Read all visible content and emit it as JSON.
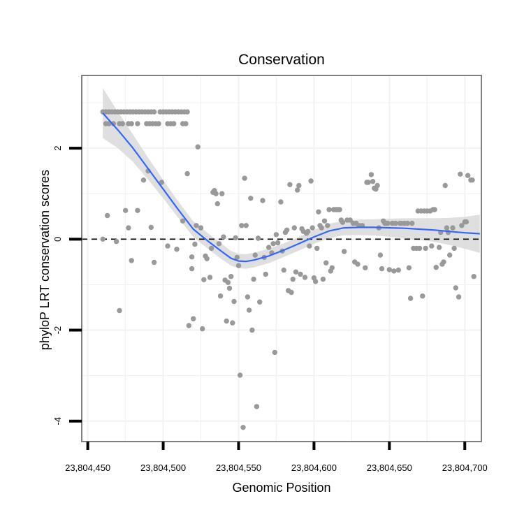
{
  "chart_data": {
    "type": "scatter",
    "title": "Conservation",
    "xlabel": "Genomic Position",
    "ylabel": "phyloP LRT conservation scores",
    "xlim": [
      23804446,
      23804711
    ],
    "ylim": [
      -4.45,
      3.6
    ],
    "x_ticks": [
      23804450,
      23804500,
      23804550,
      23804600,
      23804650,
      23804700
    ],
    "x_tick_labels": [
      "23,804,450",
      "23,804,500",
      "23,804,550",
      "23,804,600",
      "23,804,650",
      "23,804,700"
    ],
    "y_ticks": [
      -4,
      -2,
      0,
      2
    ],
    "y_tick_labels": [
      "-4",
      "-2",
      "0",
      "2"
    ],
    "reference_line": {
      "y": 0,
      "style": "dashed"
    },
    "colors": {
      "points": "#999999",
      "smooth": "#3366FF",
      "ribbon": "#D9D9D9",
      "panel_border": "#7F7F7F",
      "grid": "#F2F2F2"
    },
    "points": [
      [
        23804460,
        2.8
      ],
      [
        23804462,
        2.8
      ],
      [
        23804464,
        2.8
      ],
      [
        23804466,
        2.8
      ],
      [
        23804468,
        2.8
      ],
      [
        23804470,
        2.8
      ],
      [
        23804472,
        2.8
      ],
      [
        23804474,
        2.8
      ],
      [
        23804476,
        2.8
      ],
      [
        23804478,
        2.8
      ],
      [
        23804480,
        2.8
      ],
      [
        23804482,
        2.8
      ],
      [
        23804484,
        2.8
      ],
      [
        23804486,
        2.8
      ],
      [
        23804488,
        2.8
      ],
      [
        23804490,
        2.8
      ],
      [
        23804492,
        2.8
      ],
      [
        23804494,
        2.8
      ],
      [
        23804498,
        2.8
      ],
      [
        23804500,
        2.8
      ],
      [
        23804502,
        2.8
      ],
      [
        23804504,
        2.8
      ],
      [
        23804506,
        2.8
      ],
      [
        23804508,
        2.8
      ],
      [
        23804510,
        2.8
      ],
      [
        23804512,
        2.8
      ],
      [
        23804514,
        2.8
      ],
      [
        23804516,
        2.8
      ],
      [
        23804462,
        2.54
      ],
      [
        23804464,
        2.54
      ],
      [
        23804467,
        2.54
      ],
      [
        23804471,
        2.54
      ],
      [
        23804473,
        2.54
      ],
      [
        23804477,
        2.54
      ],
      [
        23804479,
        2.54
      ],
      [
        23804483,
        2.54
      ],
      [
        23804489,
        2.54
      ],
      [
        23804491,
        2.54
      ],
      [
        23804493,
        2.54
      ],
      [
        23804495,
        2.54
      ],
      [
        23804497,
        2.54
      ],
      [
        23804503,
        2.54
      ],
      [
        23804505,
        2.54
      ],
      [
        23804507,
        2.54
      ],
      [
        23804513,
        2.54
      ],
      [
        23804515,
        2.54
      ],
      [
        23804460,
        0.0
      ],
      [
        23804463,
        0.52
      ],
      [
        23804469,
        -0.05
      ],
      [
        23804471,
        -1.57
      ],
      [
        23804475,
        0.63
      ],
      [
        23804477,
        0.25
      ],
      [
        23804479,
        -0.47
      ],
      [
        23804483,
        0.63
      ],
      [
        23804487,
        1.3
      ],
      [
        23804490,
        1.5
      ],
      [
        23804492,
        0.26
      ],
      [
        23804494,
        -0.51
      ],
      [
        23804499,
        1.25
      ],
      [
        23804503,
        -0.15
      ],
      [
        23804509,
        -0.22
      ],
      [
        23804513,
        0.4
      ],
      [
        23804516,
        1.44
      ],
      [
        23804517,
        -1.9
      ],
      [
        23804519,
        -0.39
      ],
      [
        23804519,
        -0.65
      ],
      [
        23804520,
        -1.75
      ],
      [
        23804521,
        -0.11
      ],
      [
        23804522,
        0.3
      ],
      [
        23804523,
        2.03
      ],
      [
        23804525,
        0.25
      ],
      [
        23804526,
        -1.97
      ],
      [
        23804527,
        -0.89
      ],
      [
        23804528,
        -0.37
      ],
      [
        23804529,
        -0.43
      ],
      [
        23804531,
        -0.84
      ],
      [
        23804532,
        -0.2
      ],
      [
        23804533,
        1.03
      ],
      [
        23804534,
        1.07
      ],
      [
        23804535,
        1.0
      ],
      [
        23804536,
        0.78
      ],
      [
        23804537,
        -0.1
      ],
      [
        23804538,
        -1.25
      ],
      [
        23804539,
        1.0
      ],
      [
        23804540,
        0.05
      ],
      [
        23804541,
        -0.9
      ],
      [
        23804542,
        -1.8
      ],
      [
        23804543,
        -0.95
      ],
      [
        23804544,
        -1.08
      ],
      [
        23804545,
        -0.82
      ],
      [
        23804546,
        -1.84
      ],
      [
        23804547,
        -1.37
      ],
      [
        23804548,
        0.03
      ],
      [
        23804549,
        -0.4
      ],
      [
        23804550,
        -0.58
      ],
      [
        23804551,
        -2.99
      ],
      [
        23804552,
        0.3
      ],
      [
        23804553,
        -4.14
      ],
      [
        23804554,
        1.34
      ],
      [
        23804555,
        0.3
      ],
      [
        23804556,
        -1.27
      ],
      [
        23804557,
        -1.56
      ],
      [
        23804558,
        0.9
      ],
      [
        23804559,
        -2.0
      ],
      [
        23804560,
        -0.88
      ],
      [
        23804561,
        -0.35
      ],
      [
        23804562,
        -3.68
      ],
      [
        23804563,
        0.02
      ],
      [
        23804564,
        -1.38
      ],
      [
        23804566,
        0.85
      ],
      [
        23804567,
        -0.4
      ],
      [
        23804568,
        -0.77
      ],
      [
        23804570,
        -0.18
      ],
      [
        23804572,
        -0.3
      ],
      [
        23804573,
        -0.1
      ],
      [
        23804574,
        -2.49
      ],
      [
        23804575,
        0.1
      ],
      [
        23804576,
        -0.08
      ],
      [
        23804578,
        0.82
      ],
      [
        23804579,
        -0.26
      ],
      [
        23804580,
        -0.68
      ],
      [
        23804581,
        0.15
      ],
      [
        23804582,
        0.2
      ],
      [
        23804583,
        -1.13
      ],
      [
        23804584,
        1.2
      ],
      [
        23804585,
        -1.17
      ],
      [
        23804586,
        -0.88
      ],
      [
        23804587,
        0.25
      ],
      [
        23804588,
        -0.72
      ],
      [
        23804589,
        1.08
      ],
      [
        23804590,
        1.18
      ],
      [
        23804591,
        -0.77
      ],
      [
        23804592,
        0.23
      ],
      [
        23804593,
        0.17
      ],
      [
        23804594,
        -0.84
      ],
      [
        23804595,
        0.13
      ],
      [
        23804596,
        0.17
      ],
      [
        23804597,
        -0.15
      ],
      [
        23804598,
        1.28
      ],
      [
        23804599,
        0.25
      ],
      [
        23804600,
        -0.85
      ],
      [
        23804601,
        -0.93
      ],
      [
        23804602,
        -0.2
      ],
      [
        23804603,
        0.6
      ],
      [
        23804604,
        0.3
      ],
      [
        23804605,
        0.25
      ],
      [
        23804606,
        -0.88
      ],
      [
        23804607,
        0.4
      ],
      [
        23804608,
        -0.52
      ],
      [
        23804609,
        0.3
      ],
      [
        23804610,
        0.65
      ],
      [
        23804611,
        -0.7
      ],
      [
        23804612,
        -0.63
      ],
      [
        23804613,
        0.65
      ],
      [
        23804614,
        0.65
      ],
      [
        23804615,
        0.65
      ],
      [
        23804616,
        0.65
      ],
      [
        23804617,
        0.65
      ],
      [
        23804618,
        0.42
      ],
      [
        23804619,
        0.37
      ],
      [
        23804620,
        -0.27
      ],
      [
        23804622,
        0.42
      ],
      [
        23804624,
        0.42
      ],
      [
        23804626,
        0.35
      ],
      [
        23804627,
        -0.5
      ],
      [
        23804628,
        0.35
      ],
      [
        23804629,
        -0.55
      ],
      [
        23804630,
        0.3
      ],
      [
        23804632,
        0.3
      ],
      [
        23804634,
        -0.63
      ],
      [
        23804635,
        1.25
      ],
      [
        23804636,
        1.25
      ],
      [
        23804638,
        1.42
      ],
      [
        23804639,
        1.27
      ],
      [
        23804640,
        1.12
      ],
      [
        23804641,
        1.1
      ],
      [
        23804642,
        1.18
      ],
      [
        23804643,
        0.25
      ],
      [
        23804644,
        -0.35
      ],
      [
        23804645,
        -0.65
      ],
      [
        23804646,
        0.4
      ],
      [
        23804647,
        0.35
      ],
      [
        23804648,
        0.35
      ],
      [
        23804649,
        0.35
      ],
      [
        23804650,
        -0.67
      ],
      [
        23804652,
        0.35
      ],
      [
        23804653,
        -0.7
      ],
      [
        23804654,
        0.35
      ],
      [
        23804656,
        -0.68
      ],
      [
        23804657,
        0.35
      ],
      [
        23804658,
        0.35
      ],
      [
        23804660,
        0.35
      ],
      [
        23804662,
        0.35
      ],
      [
        23804663,
        -0.63
      ],
      [
        23804664,
        -1.3
      ],
      [
        23804665,
        0.35
      ],
      [
        23804666,
        -0.2
      ],
      [
        23804668,
        -0.2
      ],
      [
        23804669,
        0.62
      ],
      [
        23804670,
        -0.2
      ],
      [
        23804671,
        0.62
      ],
      [
        23804672,
        -1.25
      ],
      [
        23804673,
        0.62
      ],
      [
        23804674,
        -0.2
      ],
      [
        23804675,
        0.62
      ],
      [
        23804677,
        0.62
      ],
      [
        23804678,
        -0.15
      ],
      [
        23804679,
        0.65
      ],
      [
        23804680,
        0.65
      ],
      [
        23804681,
        -0.62
      ],
      [
        23804683,
        -0.18
      ],
      [
        23804684,
        0.15
      ],
      [
        23804685,
        -0.55
      ],
      [
        23804686,
        -0.5
      ],
      [
        23804687,
        1.18
      ],
      [
        23804688,
        0.25
      ],
      [
        23804689,
        0.15
      ],
      [
        23804690,
        -0.35
      ],
      [
        23804692,
        0.25
      ],
      [
        23804693,
        -0.2
      ],
      [
        23804694,
        -1.07
      ],
      [
        23804696,
        -1.27
      ],
      [
        23804697,
        1.43
      ],
      [
        23804698,
        0.3
      ],
      [
        23804700,
        0.38
      ],
      [
        23804701,
        0.38
      ],
      [
        23804702,
        1.4
      ],
      [
        23804704,
        1.3
      ],
      [
        23804705,
        1.3
      ],
      [
        23804706,
        -0.82
      ]
    ],
    "smooth": [
      [
        23804460,
        2.77
      ],
      [
        23804470,
        2.4
      ],
      [
        23804480,
        2.0
      ],
      [
        23804490,
        1.55
      ],
      [
        23804500,
        1.1
      ],
      [
        23804510,
        0.65
      ],
      [
        23804520,
        0.22
      ],
      [
        23804530,
        -0.05
      ],
      [
        23804540,
        -0.3
      ],
      [
        23804545,
        -0.42
      ],
      [
        23804550,
        -0.48
      ],
      [
        23804555,
        -0.49
      ],
      [
        23804560,
        -0.46
      ],
      [
        23804570,
        -0.37
      ],
      [
        23804580,
        -0.24
      ],
      [
        23804590,
        -0.1
      ],
      [
        23804600,
        0.05
      ],
      [
        23804610,
        0.18
      ],
      [
        23804620,
        0.25
      ],
      [
        23804630,
        0.26
      ],
      [
        23804640,
        0.26
      ],
      [
        23804650,
        0.25
      ],
      [
        23804660,
        0.24
      ],
      [
        23804670,
        0.22
      ],
      [
        23804680,
        0.2
      ],
      [
        23804690,
        0.17
      ],
      [
        23804700,
        0.14
      ],
      [
        23804710,
        0.12
      ]
    ],
    "ribbon_halfwidth": [
      0.55,
      0.4,
      0.3,
      0.24,
      0.2,
      0.18,
      0.17,
      0.17,
      0.17,
      0.16,
      0.16,
      0.16,
      0.16,
      0.16,
      0.15,
      0.15,
      0.15,
      0.16,
      0.16,
      0.17,
      0.18,
      0.2,
      0.22,
      0.24,
      0.26,
      0.3,
      0.35,
      0.42
    ]
  }
}
